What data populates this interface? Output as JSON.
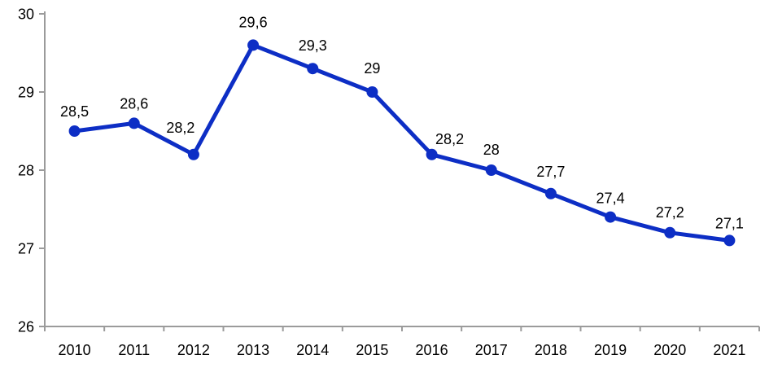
{
  "chart_data": {
    "type": "line",
    "title": "",
    "xlabel": "",
    "ylabel": "",
    "categories": [
      "2010",
      "2011",
      "2012",
      "2013",
      "2014",
      "2015",
      "2016",
      "2017",
      "2018",
      "2019",
      "2020",
      "2021"
    ],
    "series": [
      {
        "name": "value",
        "values": [
          28.5,
          28.6,
          28.2,
          29.6,
          29.3,
          29,
          28.2,
          28,
          27.7,
          27.4,
          27.2,
          27.1
        ],
        "labels": [
          "28,5",
          "28,6",
          "28,2",
          "29,6",
          "29,3",
          "29",
          "28,2",
          "28",
          "27,7",
          "27,4",
          "27,2",
          "27,1"
        ]
      }
    ],
    "decimal_separator": ",",
    "ylim": [
      26,
      30
    ],
    "yticks": [
      26,
      27,
      28,
      29,
      30
    ],
    "grid": false,
    "legend": "none",
    "label_position": "above",
    "label_dx": [
      0,
      0,
      -16,
      0,
      0,
      0,
      22,
      0,
      0,
      0,
      0,
      0
    ],
    "label_dy": [
      -18,
      -18,
      -27,
      -22,
      -22,
      -23,
      -13,
      -19,
      -21,
      -17,
      -19,
      -15
    ],
    "colors": {
      "line": "#0d2ec5",
      "marker": "#0d2ec5",
      "axis": "#9b9b9b",
      "text": "#000000",
      "background": "#ffffff"
    }
  }
}
